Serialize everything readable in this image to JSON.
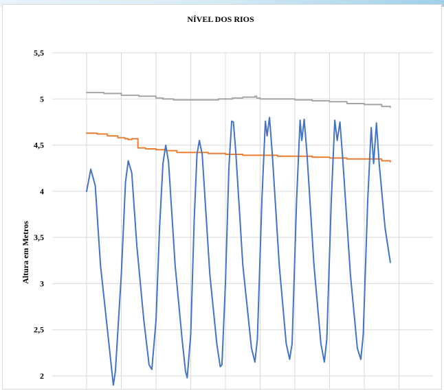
{
  "chart_data": {
    "type": "line",
    "title": "NÍVEL DOS RIOS",
    "xlabel": "",
    "ylabel": "Altura em Metros",
    "ylim": [
      1.9,
      5.5
    ],
    "yticks": [
      "2",
      "2,5",
      "3",
      "3,5",
      "4",
      "4,5",
      "5",
      "5,5"
    ],
    "xlim": [
      0,
      10
    ],
    "grid": true,
    "legend": "none",
    "colors": {
      "gray": "#a5a5a5",
      "orange": "#ed7d31",
      "blue": "#4472c4",
      "grid": "#d9d9d9"
    },
    "series": [
      {
        "color": "#a5a5a5",
        "step": true,
        "points": [
          [
            0,
            5.07
          ],
          [
            0.5,
            5.06
          ],
          [
            1,
            5.04
          ],
          [
            1.5,
            5.03
          ],
          [
            2,
            5.01
          ],
          [
            2.2,
            5.0
          ],
          [
            2.5,
            4.99
          ],
          [
            3,
            4.99
          ],
          [
            3.5,
            4.99
          ],
          [
            3.8,
            5.0
          ],
          [
            4.2,
            5.01
          ],
          [
            4.5,
            5.02
          ],
          [
            4.85,
            5.03
          ],
          [
            4.9,
            5.01
          ],
          [
            5,
            5.0
          ],
          [
            5.5,
            5.0
          ],
          [
            6,
            4.99
          ],
          [
            6.5,
            4.98
          ],
          [
            7,
            4.97
          ],
          [
            7.5,
            4.95
          ],
          [
            8,
            4.94
          ],
          [
            8.5,
            4.92
          ],
          [
            8.75,
            4.91
          ]
        ]
      },
      {
        "color": "#ed7d31",
        "step": true,
        "points": [
          [
            0,
            4.63
          ],
          [
            0.3,
            4.62
          ],
          [
            0.6,
            4.6
          ],
          [
            0.9,
            4.58
          ],
          [
            1.1,
            4.57
          ],
          [
            1.2,
            4.56
          ],
          [
            1.3,
            4.57
          ],
          [
            1.45,
            4.57
          ],
          [
            1.48,
            4.47
          ],
          [
            1.7,
            4.46
          ],
          [
            2,
            4.45
          ],
          [
            2.3,
            4.44
          ],
          [
            2.6,
            4.42
          ],
          [
            3,
            4.42
          ],
          [
            3.5,
            4.41
          ],
          [
            4,
            4.4
          ],
          [
            4.5,
            4.39
          ],
          [
            5,
            4.39
          ],
          [
            5.5,
            4.38
          ],
          [
            6,
            4.38
          ],
          [
            6.5,
            4.37
          ],
          [
            7,
            4.36
          ],
          [
            7.5,
            4.35
          ],
          [
            8,
            4.35
          ],
          [
            8.5,
            4.33
          ],
          [
            8.75,
            4.32
          ]
        ]
      },
      {
        "color": "#4472c4",
        "step": false,
        "points": [
          [
            0,
            4.0
          ],
          [
            0.12,
            4.24
          ],
          [
            0.25,
            4.06
          ],
          [
            0.4,
            3.2
          ],
          [
            0.6,
            2.5
          ],
          [
            0.77,
            1.9
          ],
          [
            0.83,
            2.05
          ],
          [
            1.0,
            3.1
          ],
          [
            1.12,
            4.1
          ],
          [
            1.2,
            4.33
          ],
          [
            1.3,
            4.2
          ],
          [
            1.45,
            3.4
          ],
          [
            1.65,
            2.6
          ],
          [
            1.8,
            2.12
          ],
          [
            1.88,
            2.07
          ],
          [
            2.0,
            2.6
          ],
          [
            2.1,
            3.6
          ],
          [
            2.2,
            4.3
          ],
          [
            2.28,
            4.5
          ],
          [
            2.36,
            4.32
          ],
          [
            2.55,
            3.2
          ],
          [
            2.75,
            2.4
          ],
          [
            2.85,
            2.05
          ],
          [
            2.9,
            1.98
          ],
          [
            3.0,
            2.45
          ],
          [
            3.1,
            3.7
          ],
          [
            3.18,
            4.4
          ],
          [
            3.25,
            4.55
          ],
          [
            3.33,
            4.4
          ],
          [
            3.55,
            3.1
          ],
          [
            3.75,
            2.35
          ],
          [
            3.85,
            2.1
          ],
          [
            3.9,
            2.12
          ],
          [
            4.0,
            3.0
          ],
          [
            4.1,
            4.25
          ],
          [
            4.18,
            4.76
          ],
          [
            4.23,
            4.75
          ],
          [
            4.3,
            4.42
          ],
          [
            4.5,
            3.2
          ],
          [
            4.75,
            2.3
          ],
          [
            4.85,
            2.15
          ],
          [
            4.92,
            2.4
          ],
          [
            5.05,
            3.9
          ],
          [
            5.15,
            4.76
          ],
          [
            5.2,
            4.6
          ],
          [
            5.27,
            4.8
          ],
          [
            5.35,
            4.4
          ],
          [
            5.55,
            3.2
          ],
          [
            5.75,
            2.35
          ],
          [
            5.85,
            2.18
          ],
          [
            5.92,
            2.35
          ],
          [
            6.05,
            3.9
          ],
          [
            6.15,
            4.77
          ],
          [
            6.2,
            4.55
          ],
          [
            6.27,
            4.78
          ],
          [
            6.35,
            4.4
          ],
          [
            6.55,
            3.2
          ],
          [
            6.75,
            2.35
          ],
          [
            6.85,
            2.15
          ],
          [
            6.92,
            2.4
          ],
          [
            7.05,
            3.9
          ],
          [
            7.15,
            4.77
          ],
          [
            7.22,
            4.55
          ],
          [
            7.3,
            4.75
          ],
          [
            7.38,
            4.35
          ],
          [
            7.6,
            3.1
          ],
          [
            7.8,
            2.3
          ],
          [
            7.9,
            2.18
          ],
          [
            7.97,
            2.45
          ],
          [
            8.1,
            3.9
          ],
          [
            8.2,
            4.69
          ],
          [
            8.27,
            4.3
          ],
          [
            8.35,
            4.74
          ],
          [
            8.43,
            4.3
          ],
          [
            8.6,
            3.6
          ],
          [
            8.75,
            3.23
          ]
        ]
      }
    ]
  }
}
